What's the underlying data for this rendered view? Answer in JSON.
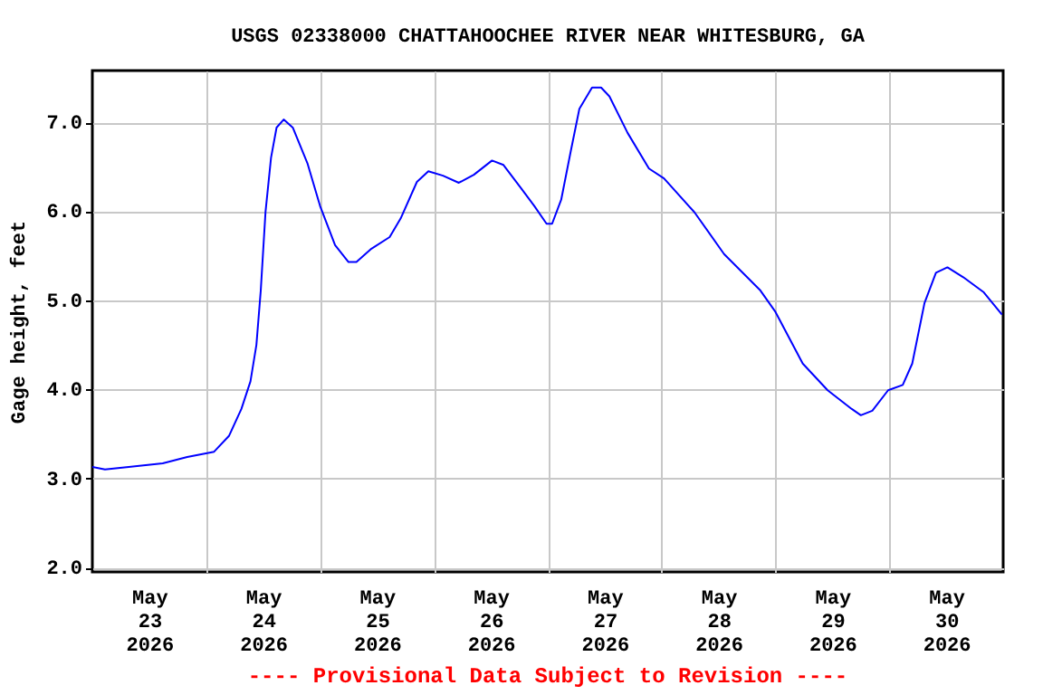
{
  "chart_data": {
    "type": "line",
    "title": "USGS 02338000 CHATTAHOOCHEE RIVER NEAR WHITESBURG, GA",
    "ylabel": "Gage height, feet",
    "annotations": [
      "---- Provisional Data Subject to Revision ----"
    ],
    "x": [
      "2026-05-23T00:00",
      "2026-05-23T02:40",
      "2026-05-23T07:40",
      "2026-05-23T14:50",
      "2026-05-23T20:00",
      "2026-05-24T01:40",
      "2026-05-24T04:50",
      "2026-05-24T07:25",
      "2026-05-24T09:20",
      "2026-05-24T10:35",
      "2026-05-24T11:30",
      "2026-05-24T12:30",
      "2026-05-24T13:40",
      "2026-05-24T14:50",
      "2026-05-24T16:20",
      "2026-05-24T18:15",
      "2026-05-24T21:20",
      "2026-05-25T00:00",
      "2026-05-25T03:10",
      "2026-05-25T06:00",
      "2026-05-25T07:40",
      "2026-05-25T10:50",
      "2026-05-25T14:40",
      "2026-05-25T17:00",
      "2026-05-25T20:25",
      "2026-05-25T22:50",
      "2026-05-26T01:55",
      "2026-05-26T05:15",
      "2026-05-26T08:25",
      "2026-05-26T12:15",
      "2026-05-26T14:40",
      "2026-05-26T18:30",
      "2026-05-26T21:10",
      "2026-05-26T23:45",
      "2026-05-27T00:55",
      "2026-05-27T02:50",
      "2026-05-27T04:50",
      "2026-05-27T06:40",
      "2026-05-27T09:20",
      "2026-05-27T11:15",
      "2026-05-27T13:00",
      "2026-05-27T16:50",
      "2026-05-27T21:20",
      "2026-05-28T00:30",
      "2026-05-28T06:55",
      "2026-05-28T13:10",
      "2026-05-28T20:50",
      "2026-05-29T00:00",
      "2026-05-29T05:45",
      "2026-05-29T11:00",
      "2026-05-29T16:05",
      "2026-05-29T18:00",
      "2026-05-29T20:25",
      "2026-05-29T23:45",
      "2026-05-30T02:50",
      "2026-05-30T04:50",
      "2026-05-30T07:25",
      "2026-05-30T09:50",
      "2026-05-30T12:15",
      "2026-05-30T15:35",
      "2026-05-30T19:55",
      "2026-05-30T23:45"
    ],
    "series": [
      {
        "color": "#0000ff",
        "values": [
          3.13,
          3.1,
          3.13,
          3.17,
          3.24,
          3.3,
          3.48,
          3.78,
          4.09,
          4.5,
          5.11,
          5.99,
          6.6,
          6.94,
          7.03,
          6.94,
          6.54,
          6.06,
          5.62,
          5.43,
          5.43,
          5.58,
          5.71,
          5.92,
          6.33,
          6.45,
          6.4,
          6.32,
          6.41,
          6.57,
          6.52,
          6.25,
          6.06,
          5.86,
          5.86,
          6.13,
          6.67,
          7.15,
          7.39,
          7.39,
          7.29,
          6.88,
          6.48,
          6.37,
          5.99,
          5.52,
          5.11,
          4.87,
          4.29,
          3.99,
          3.78,
          3.71,
          3.76,
          3.99,
          4.05,
          4.29,
          4.97,
          5.31,
          5.37,
          5.26,
          5.09,
          4.84
        ]
      }
    ],
    "xlim": [
      "2026-05-23T00:00",
      "2026-05-31T00:00"
    ],
    "xticks": [
      {
        "value": "2026-05-23T12:00",
        "label": "May 23 2026"
      },
      {
        "value": "2026-05-24T12:00",
        "label": "May 24 2026"
      },
      {
        "value": "2026-05-25T12:00",
        "label": "May 25 2026"
      },
      {
        "value": "2026-05-26T12:00",
        "label": "May 26 2026"
      },
      {
        "value": "2026-05-27T12:00",
        "label": "May 27 2026"
      },
      {
        "value": "2026-05-28T12:00",
        "label": "May 28 2026"
      },
      {
        "value": "2026-05-29T12:00",
        "label": "May 29 2026"
      },
      {
        "value": "2026-05-30T12:00",
        "label": "May 30 2026"
      },
      {
        "value": "2026-05-24T00:00",
        "label": null
      },
      {
        "value": "2026-05-25T00:00",
        "label": null
      },
      {
        "value": "2026-05-26T00:00",
        "label": null
      },
      {
        "value": "2026-05-27T00:00",
        "label": null
      },
      {
        "value": "2026-05-28T00:00",
        "label": null
      },
      {
        "value": "2026-05-29T00:00",
        "label": null
      },
      {
        "value": "2026-05-30T00:00",
        "label": null
      }
    ],
    "ylim": [
      1.95,
      7.58
    ],
    "yticks": [
      {
        "value": 2,
        "label": "2.0"
      },
      {
        "value": 3,
        "label": "3.0"
      },
      {
        "value": 4,
        "label": "4.0"
      },
      {
        "value": 5,
        "label": "5.0"
      },
      {
        "value": 6,
        "label": "6.0"
      },
      {
        "value": 7,
        "label": "7.0"
      }
    ],
    "grid": true,
    "marker": "none",
    "line_style": "solid"
  }
}
